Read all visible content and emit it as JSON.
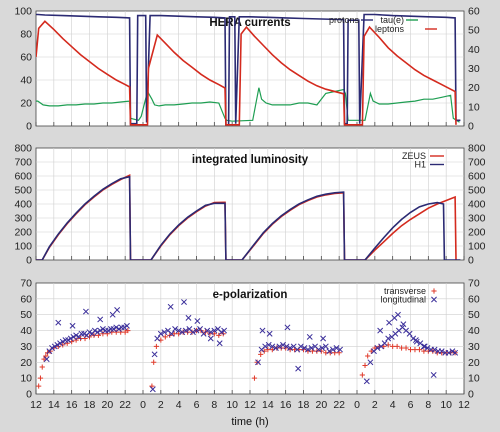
{
  "colors": {
    "protons": "#2b2a73",
    "leptons": "#d42a1e",
    "tau": "#1e9e52",
    "zeus": "#d42a1e",
    "h1": "#2b2a73",
    "transverse": "#e03a2a",
    "longitudinal": "#3b2f9a"
  },
  "x_axis": {
    "label": "time (h)",
    "tick_labels": [
      "12",
      "14",
      "16",
      "18",
      "20",
      "22",
      "0",
      "2",
      "4",
      "6",
      "8",
      "10",
      "12",
      "14",
      "16",
      "18",
      "20",
      "22",
      "0",
      "2",
      "4",
      "6",
      "8",
      "10",
      "12"
    ]
  },
  "chart_data": [
    {
      "type": "line",
      "title": "HERA currents",
      "grid": true,
      "legend": "top-right",
      "left_ticks": [
        "0",
        "20",
        "40",
        "60",
        "80",
        "100"
      ],
      "right_ticks": [
        "0",
        "10",
        "20",
        "30",
        "40",
        "50",
        "60"
      ],
      "ylim": [
        0,
        100
      ],
      "ylim_right": [
        0,
        60
      ],
      "series": [
        {
          "name": "tau(e)",
          "axis": "right",
          "x": [
            0,
            0.2,
            0.8,
            1.5,
            2.5,
            3.5,
            4.5,
            5.5,
            6.5,
            7.5,
            8.5,
            9.5,
            10.5,
            10.6,
            11.5,
            11.8,
            12.5,
            13.0,
            13.3,
            13.8,
            14.5,
            15.5,
            16.5,
            17.5,
            18.5,
            19.5,
            20.5,
            21.2,
            21.4,
            22.0,
            24.3,
            25.0,
            25.3,
            25.8,
            26.5,
            27.5,
            28.5,
            29.5,
            30.5,
            31.5,
            32.5,
            33.5,
            34.5,
            34.7,
            35.0,
            36.9,
            37.5,
            37.8,
            38.5,
            39.5,
            40.5,
            41.5,
            42.5,
            43.5,
            44.5,
            45.5,
            46.5,
            46.8,
            47.5
          ],
          "y": [
            13,
            13,
            11,
            10.5,
            10.5,
            11,
            11,
            11.5,
            11.5,
            12,
            12,
            12.5,
            13,
            4,
            3,
            5,
            18,
            14,
            11,
            10.5,
            11,
            11,
            11.5,
            12,
            12,
            12.5,
            12,
            4,
            3,
            2.5,
            3,
            20,
            14,
            12,
            11,
            11,
            11,
            12,
            12,
            11,
            17,
            18,
            19,
            17,
            3,
            3,
            17,
            13,
            11.5,
            11.5,
            12,
            12.5,
            13,
            14,
            14,
            15,
            16,
            4,
            2
          ]
        },
        {
          "name": "protons",
          "axis": "left",
          "x": [
            0,
            0.2,
            1,
            3,
            5,
            7,
            9,
            10.5,
            10.6,
            11.3,
            11.4,
            12.3,
            12.4,
            12.8,
            14,
            16,
            18,
            20,
            21.2,
            21.3,
            21.6,
            21.7,
            22.3,
            22.4,
            22.8,
            24,
            26,
            28,
            30,
            32,
            34.5,
            34.6,
            34.9,
            35.0,
            36.2,
            36.3,
            36.8,
            38,
            40,
            42,
            44,
            46,
            47.0,
            47.1,
            47.6
          ],
          "y": [
            97,
            97,
            96.5,
            96,
            95.5,
            95,
            94.5,
            94,
            2,
            2,
            96,
            96,
            3,
            96,
            96,
            95.5,
            95,
            94.5,
            94,
            1,
            1,
            95,
            95,
            2,
            95,
            95,
            94.5,
            94,
            93.5,
            93,
            92.5,
            2,
            2,
            92,
            92,
            2,
            97,
            97,
            96,
            95.5,
            95,
            94.5,
            94,
            5,
            5
          ]
        },
        {
          "name": "leptons",
          "axis": "left",
          "x": [
            0,
            0.3,
            1,
            2,
            3,
            4,
            5,
            6,
            7,
            8,
            9,
            10,
            10.5,
            10.6,
            11.5,
            12.5,
            12.6,
            13.6,
            14.5,
            15.5,
            16.5,
            17.5,
            18.5,
            19.5,
            20.5,
            21.2,
            21.3,
            22.8,
            23.0,
            23.6,
            24.5,
            25.5,
            26.5,
            27.5,
            28.5,
            29.5,
            30.5,
            31.5,
            32.5,
            34.5,
            34.6,
            36.6,
            36.8,
            37.4,
            38.5,
            39.5,
            40.5,
            41.5,
            42.5,
            43.5,
            44.5,
            45.5,
            46.5,
            47.0,
            47.1
          ],
          "y": [
            60,
            85,
            91,
            84,
            76,
            69,
            62,
            56,
            50,
            45,
            40,
            36,
            34,
            1,
            1,
            1,
            50,
            79,
            72,
            64,
            57,
            51,
            45,
            40,
            36,
            33,
            1,
            1,
            80,
            86,
            78,
            70,
            62,
            55,
            49,
            44,
            39,
            35,
            32,
            28,
            1,
            1,
            78,
            86,
            77,
            68,
            61,
            55,
            49,
            44,
            40,
            36,
            32,
            30,
            1
          ]
        }
      ]
    },
    {
      "type": "line",
      "title": "integrated luminosity",
      "grid": true,
      "legend": "top-right",
      "left_ticks": [
        "0",
        "100",
        "200",
        "300",
        "400",
        "500",
        "600",
        "700",
        "800"
      ],
      "right_ticks": [
        "0",
        "100",
        "200",
        "300",
        "400",
        "500",
        "600",
        "700",
        "800"
      ],
      "ylim": [
        0,
        800
      ],
      "series": [
        {
          "name": "ZEUS",
          "x": [
            0,
            0.7,
            1.5,
            2.5,
            3.5,
            4.5,
            5.5,
            6.5,
            7.5,
            8.5,
            9.5,
            10.5,
            10.6,
            12.9,
            14,
            15,
            16,
            17,
            18,
            19,
            20,
            21.2,
            21.3,
            23.1,
            24.5,
            25.5,
            26.5,
            27.5,
            28.5,
            29.5,
            30.5,
            31.5,
            32.5,
            33.5,
            34.5,
            34.6,
            36.9,
            38,
            39,
            40,
            41,
            42,
            43,
            44,
            45,
            46,
            47,
            47.1
          ],
          "y": [
            0,
            0,
            90,
            180,
            260,
            330,
            395,
            450,
            500,
            540,
            575,
            605,
            0,
            0,
            100,
            180,
            245,
            300,
            345,
            385,
            410,
            412,
            0,
            0,
            110,
            190,
            255,
            310,
            355,
            395,
            425,
            450,
            465,
            475,
            480,
            0,
            0,
            70,
            130,
            190,
            245,
            290,
            330,
            370,
            400,
            425,
            450,
            0
          ]
        },
        {
          "name": "H1",
          "x": [
            0,
            0.7,
            1.5,
            2.5,
            3.5,
            4.5,
            5.5,
            6.5,
            7.5,
            8.5,
            9.5,
            10.5,
            10.6,
            12.9,
            14,
            15,
            16,
            17,
            18,
            19,
            20,
            21.2,
            21.3,
            23.1,
            24.5,
            25.5,
            26.5,
            27.5,
            28.5,
            29.5,
            30.5,
            31.5,
            32.5,
            33.5,
            34.5,
            34.6,
            36.9,
            38,
            39,
            40,
            41,
            42,
            43,
            44,
            45,
            45.7,
            45.8,
            47.6
          ],
          "y": [
            0,
            0,
            95,
            185,
            265,
            335,
            400,
            455,
            505,
            545,
            580,
            595,
            0,
            0,
            105,
            185,
            250,
            305,
            350,
            390,
            405,
            405,
            0,
            0,
            115,
            195,
            260,
            315,
            360,
            400,
            430,
            455,
            470,
            480,
            485,
            0,
            0,
            85,
            160,
            230,
            290,
            340,
            380,
            400,
            410,
            400,
            0,
            0
          ]
        }
      ]
    },
    {
      "type": "scatter",
      "title": "e-polarization",
      "grid": true,
      "legend": "top-right",
      "left_ticks": [
        "0",
        "10",
        "20",
        "30",
        "40",
        "50",
        "60",
        "70"
      ],
      "right_ticks": [
        "0",
        "10",
        "20",
        "30",
        "40",
        "50",
        "60",
        "70"
      ],
      "ylim": [
        0,
        70
      ],
      "series": [
        {
          "name": "transverse",
          "marker": "plus",
          "x": [
            0.3,
            0.5,
            0.7,
            0.9,
            1.1,
            1.3,
            1.6,
            2.0,
            2.5,
            3,
            3.5,
            4,
            4.5,
            5,
            5.5,
            6,
            6.5,
            7,
            7.5,
            8,
            8.5,
            9,
            9.5,
            10,
            10.3,
            13,
            13.2,
            13.5,
            14,
            14.5,
            15,
            15.5,
            16,
            16.5,
            17,
            17.5,
            18,
            18.5,
            19,
            19.5,
            20,
            20.5,
            21,
            24.5,
            24.8,
            25.2,
            25.6,
            26,
            26.5,
            27,
            27.5,
            28,
            28.5,
            29,
            29.5,
            30,
            30.5,
            31,
            31.5,
            32,
            32.5,
            33,
            33.5,
            34,
            36.6,
            36.9,
            37.2,
            37.6,
            38,
            38.5,
            39,
            39.5,
            40,
            40.5,
            41,
            41.5,
            42,
            42.5,
            43,
            43.5,
            44,
            44.5,
            45,
            45.5,
            46,
            46.5,
            47
          ],
          "y": [
            5,
            10,
            17,
            22,
            24,
            26,
            27,
            29,
            30,
            31,
            32,
            33,
            34,
            35,
            35,
            36,
            37,
            37,
            38,
            38,
            39,
            39,
            39,
            39,
            40,
            5,
            20,
            30,
            34,
            36,
            37,
            38,
            38,
            39,
            39,
            39,
            40,
            40,
            39,
            38,
            38,
            37,
            38,
            10,
            20,
            25,
            27,
            28,
            28,
            29,
            29,
            29,
            28,
            28,
            28,
            28,
            27,
            27,
            27,
            27,
            26,
            26,
            26,
            26,
            12,
            18,
            24,
            27,
            29,
            30,
            30,
            31,
            30,
            30,
            29,
            29,
            28,
            28,
            28,
            27,
            27,
            27,
            26,
            26,
            26,
            26,
            26
          ]
        },
        {
          "name": "longitudinal",
          "marker": "cross",
          "x": [
            1.2,
            1.5,
            1.8,
            2.1,
            2.4,
            2.7,
            3,
            3.3,
            3.6,
            3.9,
            4.2,
            4.5,
            4.8,
            5.1,
            5.4,
            5.7,
            6,
            6.3,
            6.6,
            6.9,
            7.2,
            7.5,
            7.8,
            8.1,
            8.4,
            8.7,
            9,
            9.3,
            9.6,
            9.9,
            10.2,
            2.5,
            5.6,
            7.2,
            8.6,
            9.1,
            4.1,
            13.1,
            13.3,
            13.6,
            14,
            14.4,
            14.8,
            15.2,
            15.6,
            16,
            16.4,
            16.8,
            17.2,
            17.6,
            18,
            18.4,
            18.8,
            19.2,
            19.6,
            20,
            20.4,
            20.8,
            21.1,
            15.1,
            16.6,
            18.1,
            19.6,
            20.6,
            17.1,
            24.9,
            25.3,
            25.7,
            26.1,
            26.5,
            26.9,
            27.3,
            27.7,
            28.1,
            28.5,
            28.9,
            29.3,
            29.7,
            30.1,
            30.5,
            30.9,
            31.3,
            31.7,
            32.1,
            32.5,
            32.9,
            33.3,
            33.7,
            34.1,
            26.2,
            28.2,
            30.7,
            32.2,
            25.4,
            29.4,
            37.1,
            37.5,
            37.9,
            38.3,
            38.7,
            39.1,
            39.5,
            39.9,
            40.3,
            40.7,
            41.1,
            41.5,
            41.9,
            42.3,
            42.7,
            43.1,
            43.5,
            43.9,
            44.3,
            44.7,
            45.1,
            45.5,
            45.9,
            46.3,
            46.7,
            47.0,
            38.6,
            39.6,
            40.2,
            40.6,
            41.2,
            42.6,
            43.6,
            44.6
          ],
          "y": [
            22,
            27,
            29,
            30,
            31,
            32,
            33,
            34,
            34,
            35,
            36,
            37,
            36,
            38,
            38,
            37,
            39,
            38,
            40,
            39,
            40,
            41,
            40,
            40,
            41,
            41,
            42,
            41,
            42,
            42,
            43,
            45,
            52,
            47,
            50,
            53,
            43,
            3,
            25,
            35,
            38,
            39,
            40,
            38,
            41,
            40,
            39,
            40,
            41,
            39,
            40,
            41,
            38,
            40,
            39,
            40,
            41,
            39,
            40,
            55,
            58,
            46,
            35,
            32,
            48,
            20,
            28,
            30,
            31,
            30,
            29,
            30,
            31,
            30,
            29,
            30,
            28,
            30,
            29,
            28,
            29,
            30,
            28,
            29,
            30,
            27,
            28,
            29,
            28,
            38,
            42,
            36,
            35,
            40,
            16,
            8,
            20,
            27,
            29,
            30,
            32,
            35,
            36,
            38,
            40,
            42,
            40,
            38,
            35,
            33,
            32,
            30,
            29,
            28,
            28,
            27,
            27,
            26,
            26,
            27,
            26,
            40,
            45,
            48,
            50,
            44,
            34,
            30,
            12
          ]
        }
      ]
    }
  ]
}
